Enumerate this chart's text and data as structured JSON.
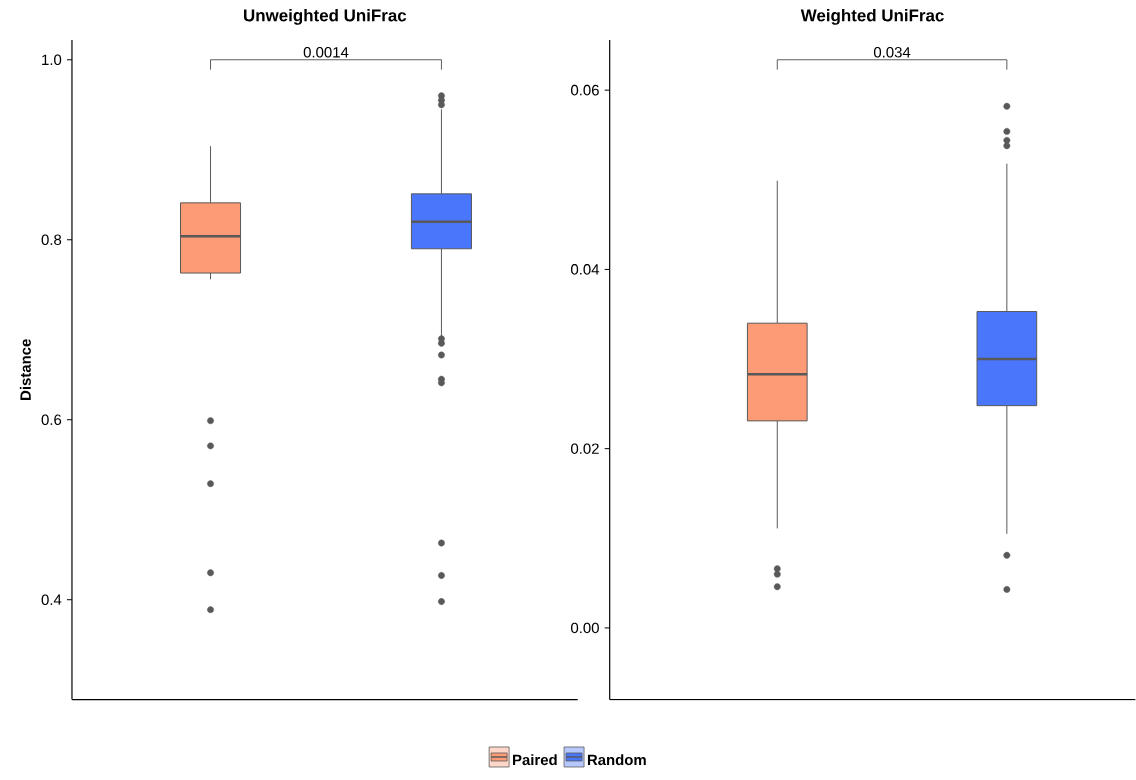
{
  "chart_data": [
    {
      "type": "box",
      "title": "Unweighted UniFrac",
      "ylabel": "Distance",
      "categories": [
        null,
        null
      ],
      "ylim": [
        0.289,
        1.022
      ],
      "yticks": [
        0.4,
        0.6,
        0.8,
        {
          "value": 1.0,
          "label": "1.0"
        }
      ],
      "tick_labels": "y",
      "legend": "bottom",
      "grid": false,
      "annotations": [
        "0.0014"
      ],
      "series": [
        {
          "name": "Paired",
          "color": "#fc9b75",
          "boxes": [
            {
              "low": 0.756,
              "q1": 0.763,
              "median": 0.804,
              "q3": 0.841,
              "high": 0.904,
              "outliers": [
                0.599,
                0.571,
                0.529,
                0.43,
                0.389
              ]
            },
            null
          ]
        },
        {
          "name": "Random",
          "color": "#4a76fc",
          "boxes": [
            null,
            {
              "low": 0.693,
              "q1": 0.79,
              "median": 0.82,
              "q3": 0.851,
              "high": 0.945,
              "outliers": [
                0.95,
                0.955,
                0.96,
                0.69,
                0.685,
                0.672,
                0.645,
                0.641,
                0.463,
                0.427,
                0.398
              ]
            }
          ]
        }
      ]
    },
    {
      "type": "box",
      "title": "Weighted UniFrac",
      "categories": [
        null,
        null
      ],
      "ylim": [
        -0.008,
        0.0656
      ],
      "yticks": [
        {
          "value": 0.0,
          "label": "0.00"
        },
        0.02,
        0.04,
        0.06
      ],
      "tick_labels": "y",
      "grid": false,
      "annotations": [
        "0.034"
      ],
      "series": [
        {
          "color": "#fc9b75",
          "boxes": [
            {
              "low": 0.0111,
              "q1": 0.0231,
              "median": 0.0283,
              "q3": 0.034,
              "high": 0.0499,
              "outliers": [
                0.0066,
                0.006,
                0.0046
              ]
            },
            null
          ]
        },
        {
          "color": "#4a76fc",
          "boxes": [
            null,
            {
              "low": 0.0105,
              "q1": 0.0248,
              "median": 0.03,
              "q3": 0.0353,
              "high": 0.0518,
              "outliers": [
                0.0582,
                0.0554,
                0.0544,
                0.0538,
                0.0081,
                0.0043
              ]
            }
          ]
        }
      ]
    }
  ]
}
